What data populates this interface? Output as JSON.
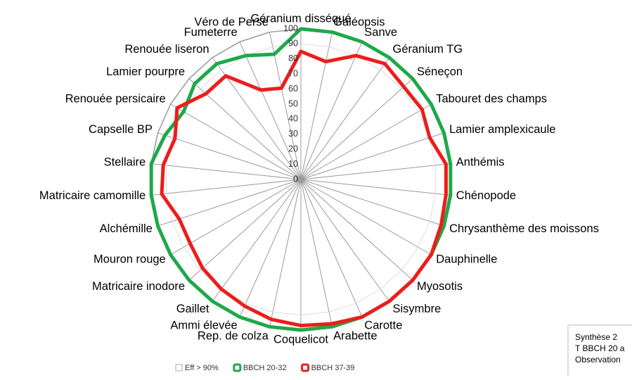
{
  "chart_data": {
    "type": "radar",
    "categories": [
      "Géranium disséqué",
      "Galéopsis",
      "Sanve",
      "Géranium TG",
      "Séneçon",
      "Tabouret des champs",
      "Lamier amplexicaule",
      "Anthémis",
      "Chénopode",
      "Chrysanthème des moissons",
      "Dauphinelle",
      "Myosotis",
      "Sisymbre",
      "Carotte",
      "Arabette",
      "Coquelicot",
      "Rep. de colza",
      "Ammi élevée",
      "Gaillet",
      "Matricaire inodore",
      "Mouron rouge",
      "Alchémille",
      "Matricaire camomille",
      "Stellaire",
      "Capselle BP",
      "Renouée persicaire",
      "Lamier pourpre",
      "Renouée liseron",
      "Fumeterre",
      "Véro de Perse"
    ],
    "series": [
      {
        "name": "Eff > 90%",
        "color": "#ffffff",
        "values": [
          90,
          90,
          90,
          90,
          90,
          90,
          90,
          90,
          90,
          90,
          90,
          90,
          90,
          90,
          90,
          90,
          90,
          90,
          90,
          90,
          90,
          90,
          90,
          90,
          90,
          90,
          90,
          90,
          90,
          90
        ]
      },
      {
        "name": "BBCH 20-32",
        "color": "#1fa84a",
        "values": [
          100,
          100,
          100,
          100,
          100,
          100,
          100,
          100,
          100,
          100,
          100,
          100,
          100,
          100,
          100,
          100,
          100,
          100,
          100,
          100,
          100,
          100,
          100,
          100,
          95,
          90,
          95,
          95,
          90,
          85
        ]
      },
      {
        "name": "BBCH 37-39",
        "color": "#ee1c1c",
        "values": [
          85,
          80,
          90,
          95,
          92,
          93,
          90,
          97,
          97,
          98,
          100,
          100,
          100,
          100,
          98,
          97,
          95,
          92,
          90,
          88,
          85,
          85,
          93,
          92,
          88,
          95,
          85,
          85,
          65,
          62
        ]
      }
    ],
    "ylim": [
      0,
      100
    ],
    "yticks": [
      0,
      10,
      20,
      30,
      40,
      50,
      60,
      70,
      80,
      90,
      100
    ],
    "grid": true,
    "note": [
      "Synthèse  2",
      "T BBCH 20 a",
      "Observation"
    ]
  }
}
